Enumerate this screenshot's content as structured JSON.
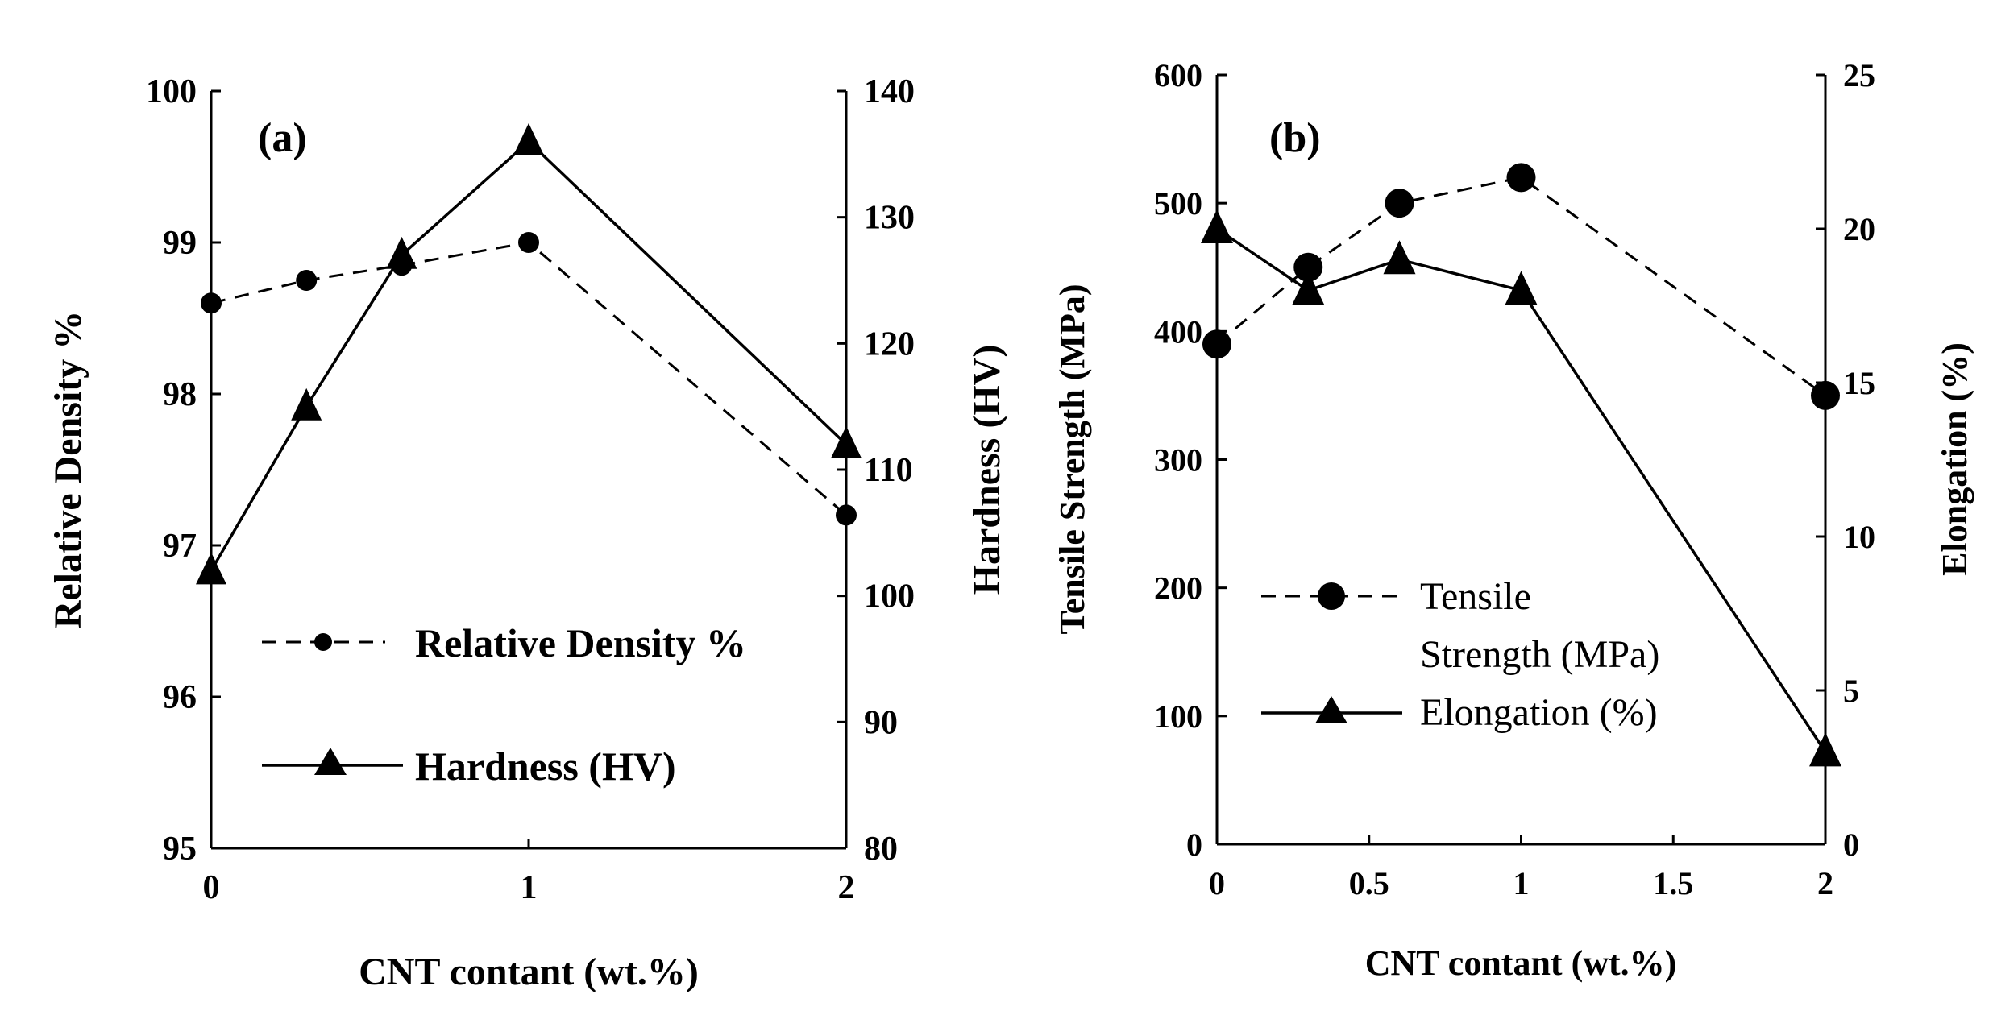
{
  "chart_data": [
    {
      "type": "line",
      "panel_label": "(a)",
      "xlabel": "CNT contant (wt.%)",
      "ylabel_left": "Relative Density %",
      "ylabel_right": "Hardness (HV)",
      "x_ticks": [
        "0",
        "1",
        "2"
      ],
      "ylim_left": [
        95,
        100
      ],
      "ylim_right": [
        80,
        140
      ],
      "y_ticks_left": [
        "95",
        "96",
        "97",
        "98",
        "99",
        "100"
      ],
      "y_ticks_right": [
        "80",
        "90",
        "100",
        "110",
        "120",
        "130",
        "140"
      ],
      "categories": [
        "0",
        "0.3",
        "0.6",
        "1",
        "2"
      ],
      "series": [
        {
          "name": "Relative Density %",
          "axis": "left",
          "style": "dashed-circle",
          "values": [
            98.6,
            98.75,
            98.85,
            99.0,
            97.2
          ]
        },
        {
          "name": "Hardness (HV)",
          "axis": "right",
          "style": "solid-triangle",
          "values": [
            102,
            115,
            127,
            136,
            112
          ]
        }
      ],
      "legend": [
        "Relative Density %",
        "Hardness (HV)"
      ]
    },
    {
      "type": "line",
      "panel_label": "(b)",
      "xlabel": "CNT contant (wt.%)",
      "ylabel_left": "Tensile Strength (MPa)",
      "ylabel_right": "Elongation (%)",
      "x_ticks": [
        "0",
        "0.5",
        "1",
        "1.5",
        "2"
      ],
      "ylim_left": [
        0,
        600
      ],
      "ylim_right": [
        0,
        25
      ],
      "y_ticks_left": [
        "0",
        "100",
        "200",
        "300",
        "400",
        "500",
        "600"
      ],
      "y_ticks_right": [
        "0",
        "5",
        "10",
        "15",
        "20",
        "25"
      ],
      "x": [
        0,
        0.3,
        0.6,
        1,
        2
      ],
      "series": [
        {
          "name": "Tensile Strength (MPa)",
          "axis": "left",
          "style": "dashed-circle",
          "values": [
            390,
            450,
            500,
            520,
            350
          ]
        },
        {
          "name": "Elongation (%)",
          "axis": "right",
          "style": "solid-triangle",
          "values": [
            20,
            18,
            19,
            18,
            3
          ]
        }
      ],
      "legend_lines": [
        "Tensile",
        "Strength (MPa)",
        "Elongation (%)"
      ]
    }
  ]
}
